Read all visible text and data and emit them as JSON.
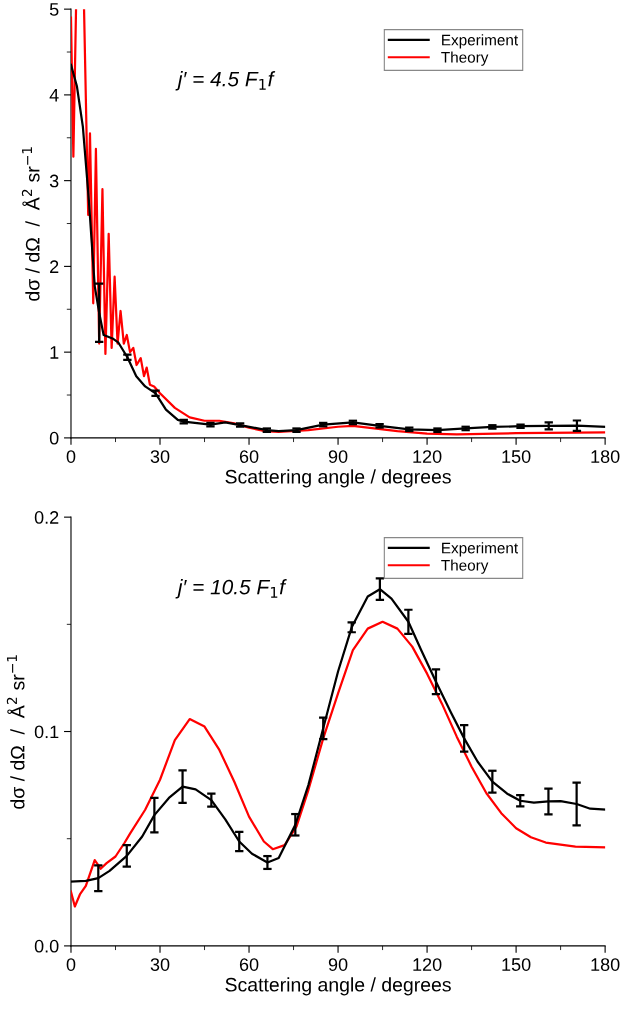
{
  "chart_data": [
    {
      "type": "line",
      "xlabel": "Scattering angle / degrees",
      "ylabel": "dσ / dΩ  /  Å$^{2}$ sr$^{−1}$",
      "annotations": [
        "j′ = 4.5 F$_{1}$f"
      ],
      "xlim": [
        0,
        180
      ],
      "xticks": [
        0,
        30,
        60,
        90,
        120,
        150,
        180
      ],
      "ylim": [
        0,
        5
      ],
      "yticks": [
        0,
        1,
        2,
        3,
        4,
        5
      ],
      "legend": "top right",
      "series": [
        {
          "name": "Experiment",
          "color": "#000000",
          "x": [
            0,
            2,
            4,
            6,
            8,
            9.5,
            11,
            14,
            16,
            19,
            22,
            25,
            28.5,
            32,
            36,
            38,
            47,
            52,
            57,
            66,
            70,
            76,
            85,
            95,
            104,
            114,
            123.5,
            133,
            142,
            151.5,
            161,
            170.5,
            180
          ],
          "values": [
            4.35,
            4.1,
            3.63,
            2.78,
            1.77,
            1.46,
            1.2,
            1.16,
            1.11,
            0.94,
            0.72,
            0.6,
            0.52,
            0.33,
            0.21,
            0.19,
            0.155,
            0.18,
            0.15,
            0.09,
            0.08,
            0.09,
            0.155,
            0.18,
            0.141,
            0.1,
            0.09,
            0.11,
            0.128,
            0.136,
            0.14,
            0.143,
            0.128
          ],
          "errors": [
            null,
            null,
            null,
            null,
            null,
            0.34,
            null,
            null,
            null,
            0.03,
            null,
            null,
            0.03,
            null,
            null,
            0.02,
            0.02,
            null,
            0.02,
            0.02,
            null,
            0.02,
            0.02,
            0.02,
            0.02,
            0.02,
            0.02,
            0.02,
            0.02,
            0.02,
            0.04,
            0.06,
            null
          ]
        },
        {
          "name": "Theory",
          "color": "#ff0000",
          "x": [
            0,
            0.8,
            1.7,
            3.0,
            4.4,
            5.8,
            6.4,
            7.5,
            8.4,
            9.5,
            10.6,
            11.6,
            12.7,
            13.7,
            14.7,
            15.7,
            16.7,
            17.8,
            18.8,
            19.9,
            21,
            22.1,
            23.5,
            24.6,
            25.5,
            26.6,
            28,
            30,
            35,
            40,
            45,
            50,
            55,
            60,
            65,
            70,
            80,
            90,
            95,
            100,
            110,
            120,
            130,
            150,
            180
          ],
          "values": [
            4.9,
            3.28,
            5,
            null,
            5,
            2.6,
            3.55,
            1.57,
            3.37,
            1.1,
            2.9,
            0.98,
            2.38,
            1.05,
            1.88,
            1.1,
            1.48,
            1.1,
            1.2,
            1.0,
            1.05,
            0.85,
            0.93,
            0.72,
            0.82,
            0.62,
            0.6,
            0.52,
            0.35,
            0.24,
            0.2,
            0.2,
            0.17,
            0.12,
            0.08,
            0.07,
            0.09,
            0.13,
            0.14,
            0.12,
            0.08,
            0.05,
            0.04,
            0.055,
            0.065
          ]
        }
      ]
    },
    {
      "type": "line",
      "xlabel": "Scattering angle / degrees",
      "ylabel": "dσ / dΩ  /  Å$^{2}$ sr$^{−1}$",
      "annotations": [
        "j′ = 10.5 F$_{1}$f"
      ],
      "xlim": [
        0,
        180
      ],
      "xticks": [
        0,
        30,
        60,
        90,
        120,
        150,
        180
      ],
      "ylim": [
        0,
        0.2
      ],
      "yticks": [
        {
          "value": 0,
          "label": "0.0"
        },
        0.1,
        0.2
      ],
      "legend": "top right",
      "series": [
        {
          "name": "Experiment",
          "color": "#000000",
          "x": [
            0,
            5,
            9.2,
            13,
            18.8,
            24,
            28.1,
            33,
            37.6,
            42,
            47.3,
            52,
            56.7,
            61,
            66.2,
            70,
            75.6,
            80,
            85,
            90,
            94.6,
            100,
            104.1,
            108,
            113.7,
            118,
            123,
            128,
            132.5,
            137,
            142,
            147,
            151.4,
            156,
            160.9,
            165,
            170.4,
            175,
            180
          ],
          "values": [
            0.03,
            0.0303,
            0.0316,
            0.035,
            0.042,
            0.051,
            0.061,
            0.069,
            0.0743,
            0.073,
            0.068,
            0.059,
            0.0487,
            0.043,
            0.0389,
            0.041,
            0.0565,
            0.075,
            0.1015,
            0.128,
            0.1486,
            0.163,
            0.1664,
            0.162,
            0.1512,
            0.138,
            0.1232,
            0.109,
            0.0968,
            0.086,
            0.0766,
            0.071,
            0.0677,
            0.0668,
            0.0674,
            0.0675,
            0.0662,
            0.064,
            0.0636
          ],
          "errors": [
            null,
            null,
            0.006,
            null,
            0.005,
            null,
            0.008,
            null,
            0.0076,
            null,
            0.003,
            null,
            0.0045,
            null,
            0.003,
            null,
            0.005,
            null,
            0.005,
            null,
            0.0023,
            null,
            0.005,
            null,
            0.0056,
            null,
            0.0058,
            null,
            0.0062,
            null,
            0.0051,
            null,
            0.0026,
            null,
            0.006,
            null,
            0.01,
            null,
            null
          ]
        },
        {
          "name": "Theory",
          "color": "#ff0000",
          "x": [
            0,
            1.3,
            3,
            5,
            8,
            10,
            12,
            15,
            18,
            20,
            25,
            30,
            35,
            40,
            45,
            50,
            55,
            60,
            65,
            68,
            72,
            76,
            80,
            85,
            90,
            95,
            100,
            105,
            110,
            115,
            120,
            125,
            130,
            135,
            140,
            145,
            150,
            155,
            160,
            170,
            180
          ],
          "values": [
            0.0253,
            0.0184,
            0.024,
            0.028,
            0.04,
            0.036,
            0.0386,
            0.0417,
            0.048,
            0.0526,
            0.0635,
            0.0775,
            0.096,
            0.1058,
            0.1023,
            0.0914,
            0.0767,
            0.0603,
            0.0487,
            0.0451,
            0.047,
            0.0557,
            0.0727,
            0.0968,
            0.1178,
            0.138,
            0.148,
            0.1512,
            0.148,
            0.1396,
            0.127,
            0.113,
            0.0976,
            0.0836,
            0.0712,
            0.0619,
            0.0549,
            0.0507,
            0.0482,
            0.0463,
            0.046
          ]
        }
      ]
    }
  ]
}
